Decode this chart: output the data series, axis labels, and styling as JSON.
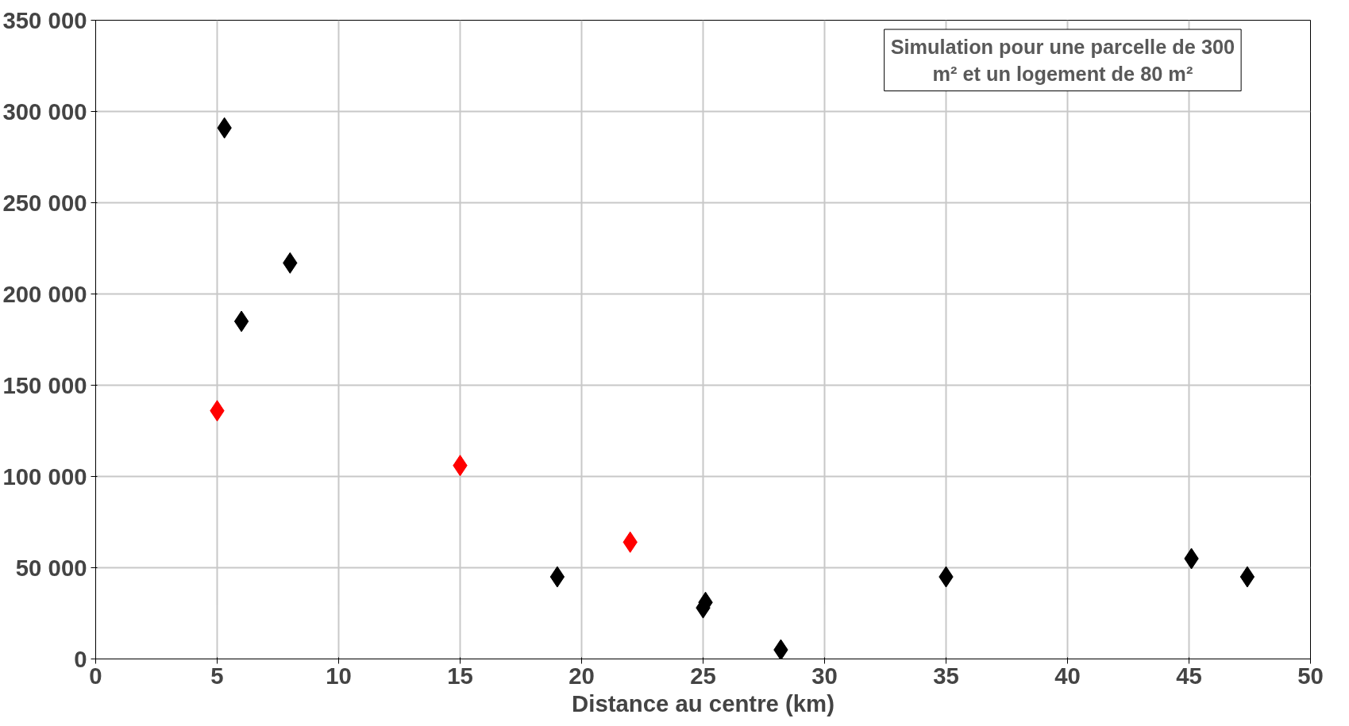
{
  "chart_data": {
    "type": "scatter",
    "xlabel": "Distance au centre (km)",
    "annotations": [
      "Simulation pour une parcelle de 300 m² et un logement de 80 m²"
    ],
    "series": [
      {
        "color": "#000000",
        "x": [
          5.3,
          6.0,
          8.0,
          19.0,
          25.0,
          25.1,
          28.2,
          35.0,
          45.1,
          47.4
        ],
        "values": [
          291000,
          185000,
          217000,
          45000,
          28000,
          31000,
          5000,
          45000,
          55000,
          45000
        ]
      },
      {
        "color": "#ff0000",
        "x": [
          5.0,
          15.0,
          22.0
        ],
        "values": [
          136000,
          106000,
          64000
        ]
      }
    ],
    "xlim": [
      0,
      50
    ],
    "xticks": [
      0,
      5,
      10,
      15,
      20,
      25,
      30,
      35,
      40,
      45,
      50
    ],
    "ylim": [
      0,
      350000
    ],
    "yticks": [
      {
        "value": 0,
        "label": "0"
      },
      {
        "value": 50000,
        "label": "50 000"
      },
      {
        "value": 100000,
        "label": "100 000"
      },
      {
        "value": 150000,
        "label": "150 000"
      },
      {
        "value": 200000,
        "label": "200 000"
      },
      {
        "value": 250000,
        "label": "250 000"
      },
      {
        "value": 300000,
        "label": "300 000"
      },
      {
        "value": 350000,
        "label": "350 000"
      }
    ],
    "grid": true,
    "marker": "diamond"
  }
}
